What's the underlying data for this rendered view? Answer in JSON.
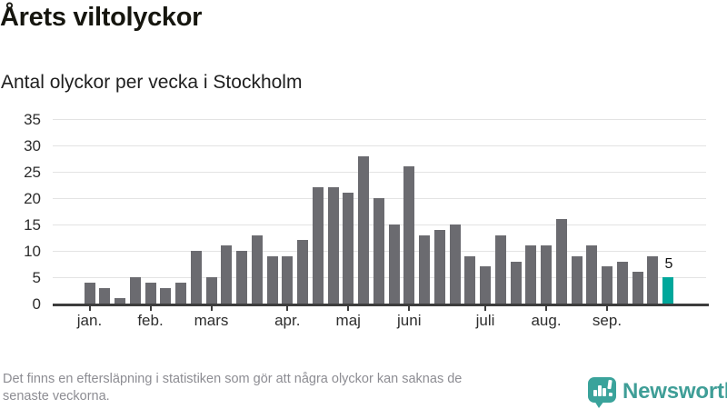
{
  "header": {
    "title": "Årets viltolyckor",
    "subtitle": "Antal olyckor per vecka i Stockholm"
  },
  "chart_data": {
    "type": "bar",
    "title": "Årets viltolyckor",
    "subtitle": "Antal olyckor per vecka i Stockholm",
    "values": [
      4,
      3,
      1,
      5,
      4,
      3,
      4,
      10,
      5,
      11,
      10,
      13,
      9,
      9,
      12,
      22,
      22,
      21,
      28,
      20,
      15,
      26,
      13,
      14,
      15,
      9,
      7,
      13,
      8,
      11,
      11,
      16,
      9,
      11,
      7,
      8,
      6,
      9,
      5
    ],
    "highlight_index": 38,
    "highlight_label": "5",
    "yticks": [
      0,
      5,
      10,
      15,
      20,
      25,
      30,
      35
    ],
    "ylim": [
      0,
      35
    ],
    "month_ticks": [
      {
        "label": "jan.",
        "bar_index": 1
      },
      {
        "label": "feb.",
        "bar_index": 5
      },
      {
        "label": "mars",
        "bar_index": 9
      },
      {
        "label": "apr.",
        "bar_index": 14
      },
      {
        "label": "maj",
        "bar_index": 18
      },
      {
        "label": "juni",
        "bar_index": 22
      },
      {
        "label": "juli",
        "bar_index": 27
      },
      {
        "label": "aug.",
        "bar_index": 31
      },
      {
        "label": "sep.",
        "bar_index": 35
      }
    ],
    "grid": true,
    "legend": false,
    "bar_color": "#6b6b70",
    "highlight_color": "#00a79b",
    "grid_color": "#e3e3e3",
    "axis_color": "#3d3d3d"
  },
  "footer": {
    "note": "Det finns en eftersläpning i statistiken som gör att några olyckor kan saknas de\nsenaste veckorna.",
    "brand": "Newsworthy"
  },
  "colors": {
    "accent": "#00a79b",
    "bar": "#6b6b70",
    "brand_teal": "#3f9e97",
    "note_gray": "#8d8d93"
  },
  "icons": {
    "brand_icon": "chart-speech-bubble-icon"
  }
}
